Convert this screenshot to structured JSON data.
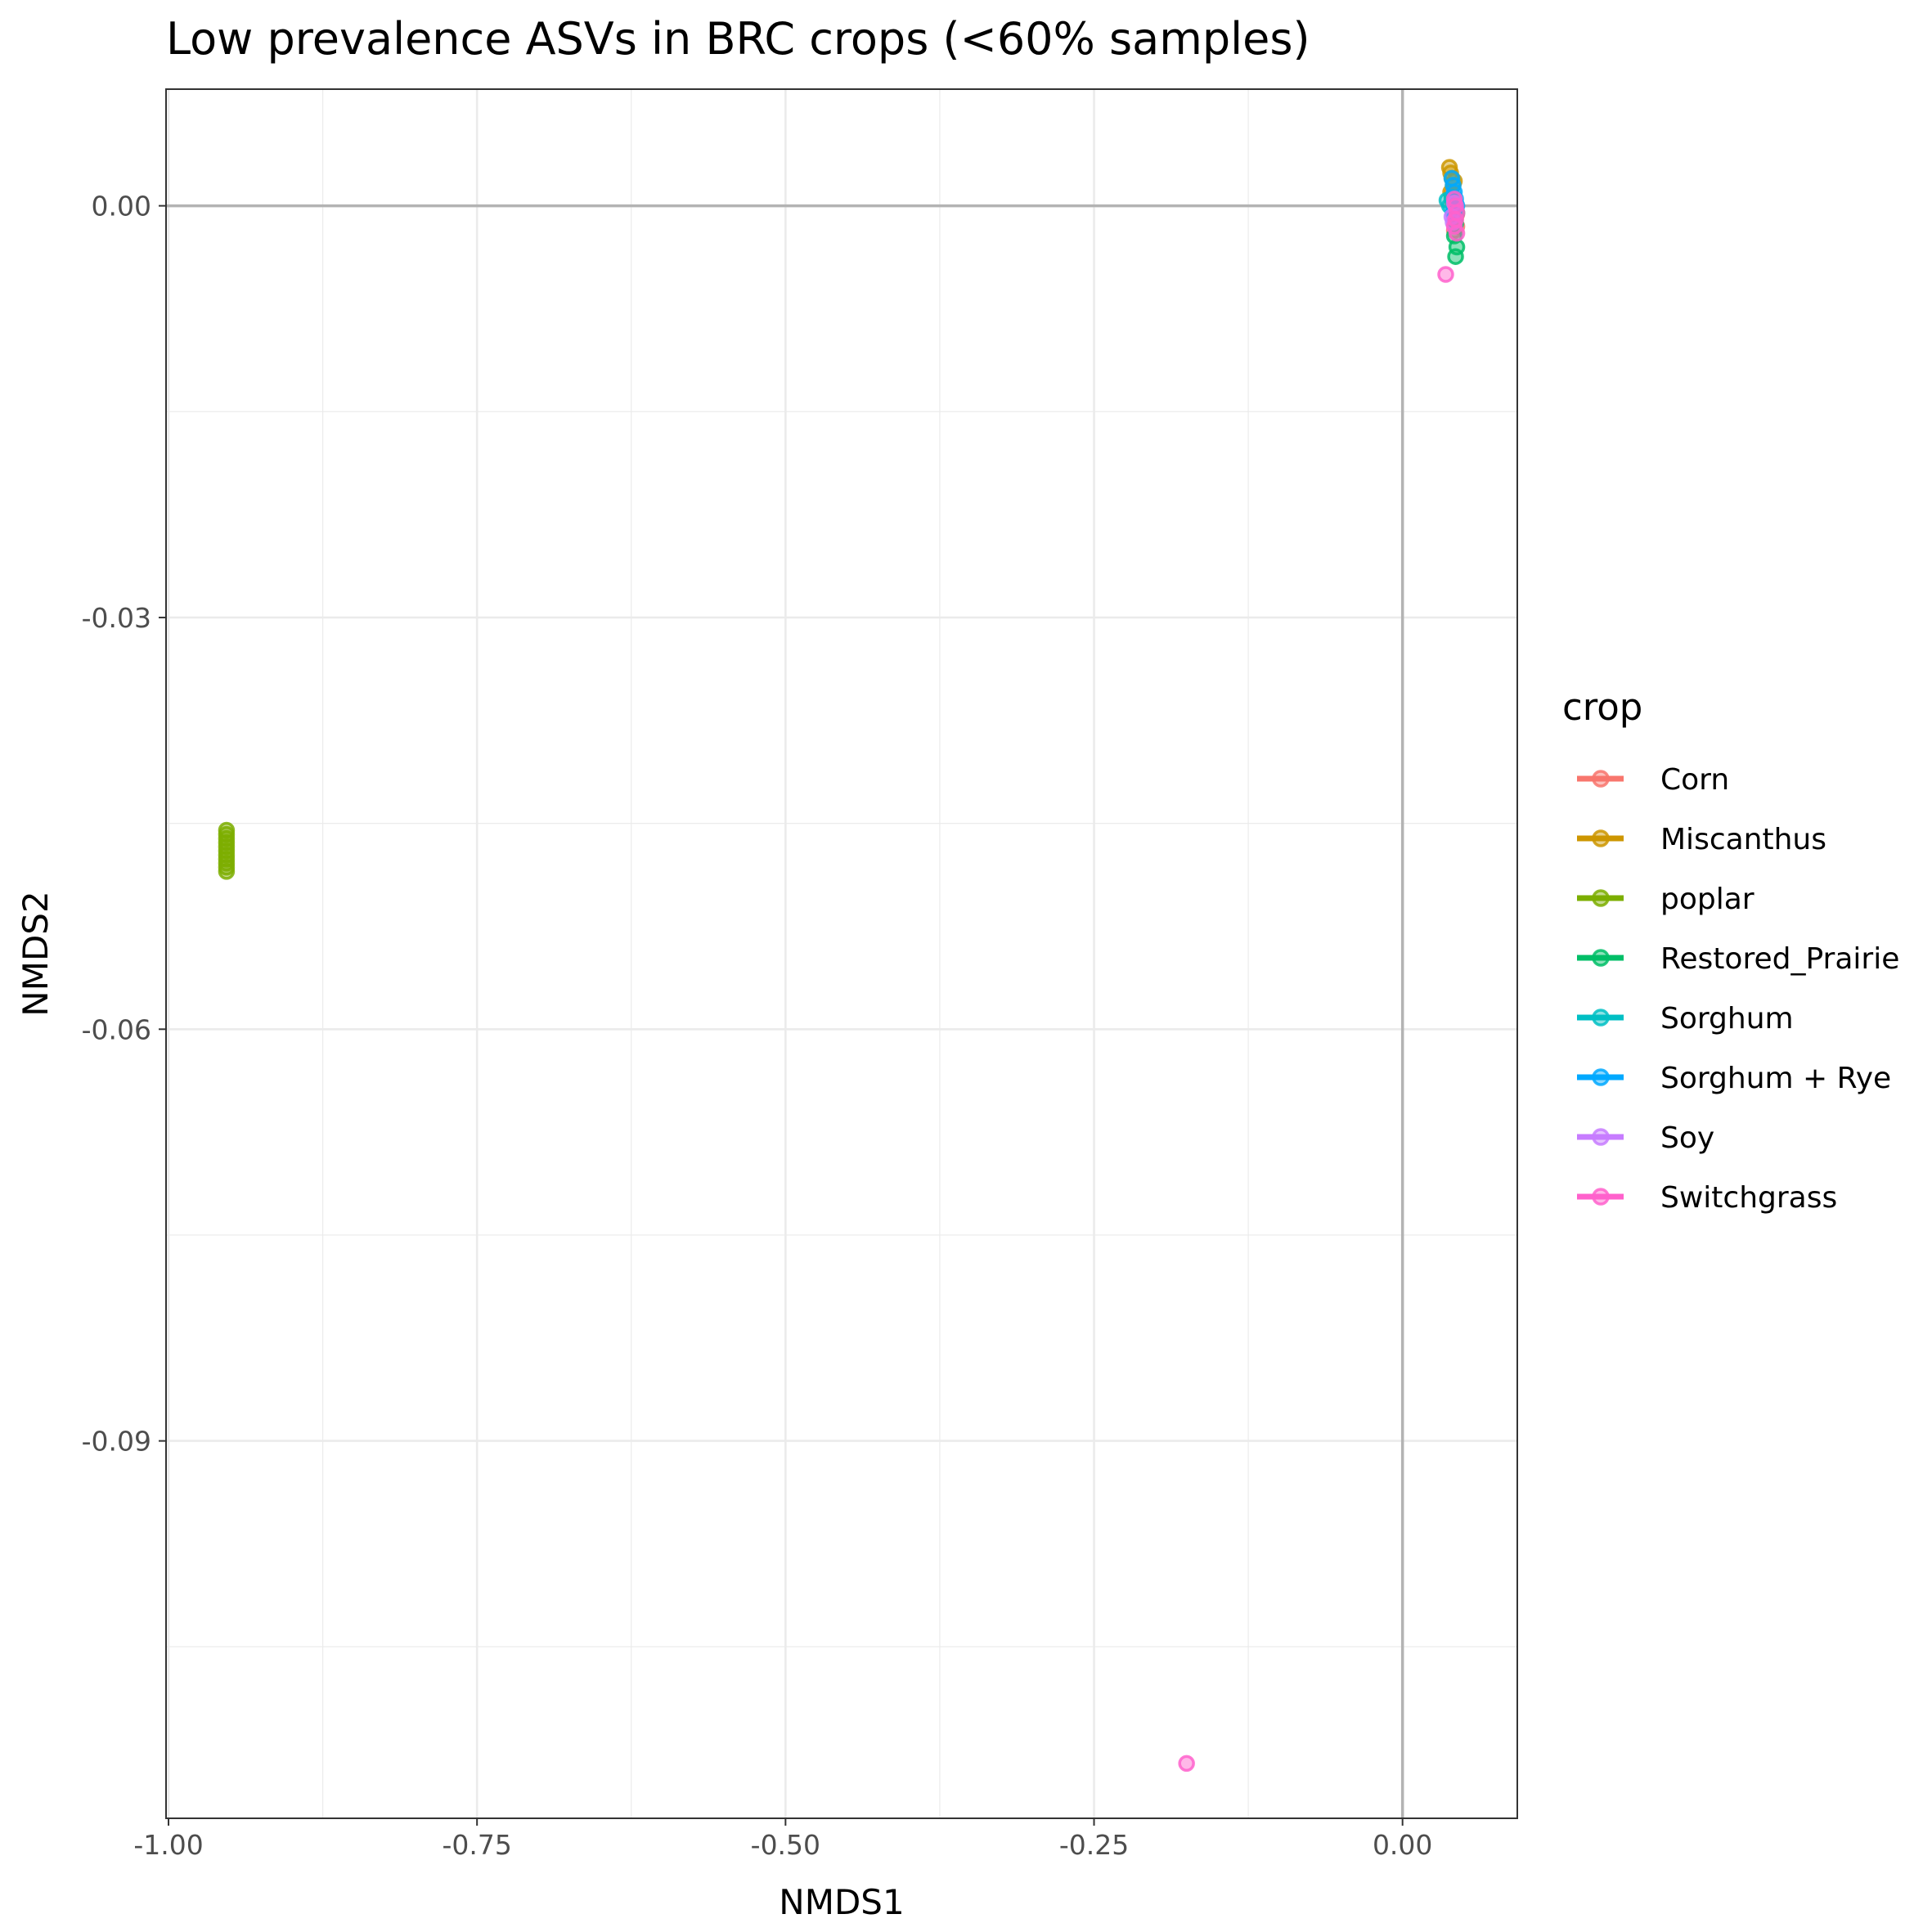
{
  "chart_data": {
    "type": "scatter",
    "title": "Low prevalence ASVs in BRC crops (<60% samples)",
    "xlabel": "NMDS1",
    "ylabel": "NMDS2",
    "xlim": [
      -1.002,
      0.093
    ],
    "ylim": [
      -0.1175,
      0.0085
    ],
    "x_ticks": [
      -1.0,
      -0.75,
      -0.5,
      -0.25,
      0.0
    ],
    "x_tick_labels": [
      "-1.00",
      "-0.75",
      "-0.50",
      "-0.25",
      "0.00"
    ],
    "y_ticks": [
      0.0,
      -0.03,
      -0.06,
      -0.09
    ],
    "y_tick_labels": [
      "0.00",
      "-0.03",
      "-0.06",
      "-0.09"
    ],
    "reference_lines": {
      "x": 0,
      "y": 0
    },
    "grid": true,
    "legend": {
      "title": "crop",
      "position": "right"
    },
    "series": [
      {
        "name": "Corn",
        "color": "#F8766D",
        "x": [
          0.04,
          0.042,
          0.043,
          0.044,
          0.042,
          0.041,
          0.044
        ],
        "y": [
          0.0008,
          -0.0002,
          -0.001,
          -0.0015,
          -0.0018,
          0.0003,
          -0.0006
        ]
      },
      {
        "name": "Miscanthus",
        "color": "#CD9600",
        "x": [
          0.038,
          0.039,
          0.04,
          0.041,
          0.039,
          0.04,
          0.042
        ],
        "y": [
          0.0028,
          0.0024,
          0.002,
          0.0015,
          0.001,
          0.0005,
          0.0018
        ]
      },
      {
        "name": "poplar",
        "color": "#7CAE00",
        "x": [
          -0.953,
          -0.953,
          -0.953,
          -0.953,
          -0.953,
          -0.953,
          -0.953,
          -0.953,
          -0.953,
          -0.953,
          -0.953
        ],
        "y": [
          -0.0455,
          -0.0458,
          -0.0461,
          -0.0464,
          -0.0467,
          -0.047,
          -0.0473,
          -0.0476,
          -0.0479,
          -0.0482,
          -0.0485
        ]
      },
      {
        "name": "Restored_Prairie",
        "color": "#00BE67",
        "x": [
          0.043,
          0.044,
          0.042,
          0.043,
          0.044
        ],
        "y": [
          -0.0037,
          -0.003,
          -0.0022,
          -0.0013,
          -0.0005
        ]
      },
      {
        "name": "Sorghum",
        "color": "#00BFC4",
        "x": [
          0.036,
          0.038,
          0.04,
          0.042,
          0.043
        ],
        "y": [
          0.0004,
          0.0,
          0.0006,
          -0.0004,
          0.0002
        ]
      },
      {
        "name": "Sorghum + Rye",
        "color": "#00A9FF",
        "x": [
          0.04,
          0.041,
          0.042,
          0.043,
          0.044,
          0.041
        ],
        "y": [
          0.002,
          0.0015,
          0.001,
          0.0005,
          0.0,
          -0.0005
        ]
      },
      {
        "name": "Soy",
        "color": "#C77CFF",
        "x": [
          0.04,
          0.041,
          0.042
        ],
        "y": [
          -0.0008,
          -0.0012,
          0.0002
        ]
      },
      {
        "name": "Switchgrass",
        "color": "#FF61CC",
        "x": [
          -0.175,
          0.035,
          0.042,
          0.043,
          0.044,
          0.043,
          0.042,
          0.044
        ],
        "y": [
          -0.1135,
          -0.005,
          0.0005,
          0.0,
          -0.0005,
          -0.001,
          -0.0015,
          -0.002
        ]
      }
    ]
  }
}
